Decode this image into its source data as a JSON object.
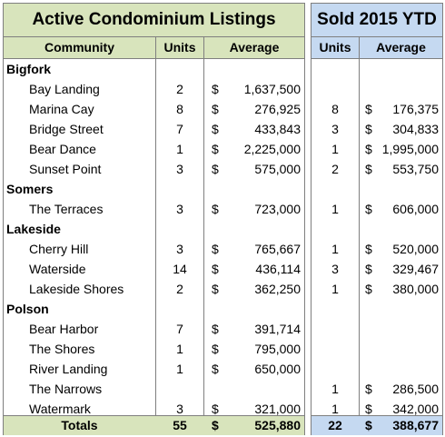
{
  "active": {
    "title": "Active Condominium Listings",
    "headers": {
      "community": "Community",
      "units": "Units",
      "average": "Average"
    },
    "totals": {
      "label": "Totals",
      "units": "55",
      "currency": "$",
      "average": "525,880"
    }
  },
  "sold": {
    "title": "Sold 2015 YTD",
    "headers": {
      "units": "Units",
      "average": "Average"
    },
    "totals": {
      "units": "22",
      "currency": "$",
      "average": "388,677"
    }
  },
  "rows": [
    {
      "type": "group",
      "name": "Bigfork"
    },
    {
      "type": "item",
      "name": "Bay Landing",
      "units": "2",
      "currency": "$",
      "avg": "1,637,500",
      "sold_units": "",
      "sold_currency": "",
      "sold_avg": ""
    },
    {
      "type": "item",
      "name": "Marina Cay",
      "units": "8",
      "currency": "$",
      "avg": "276,925",
      "sold_units": "8",
      "sold_currency": "$",
      "sold_avg": "176,375"
    },
    {
      "type": "item",
      "name": "Bridge Street",
      "units": "7",
      "currency": "$",
      "avg": "433,843",
      "sold_units": "3",
      "sold_currency": "$",
      "sold_avg": "304,833"
    },
    {
      "type": "item",
      "name": "Bear Dance",
      "units": "1",
      "currency": "$",
      "avg": "2,225,000",
      "sold_units": "1",
      "sold_currency": "$",
      "sold_avg": "1,995,000"
    },
    {
      "type": "item",
      "name": "Sunset Point",
      "units": "3",
      "currency": "$",
      "avg": "575,000",
      "sold_units": "2",
      "sold_currency": "$",
      "sold_avg": "553,750"
    },
    {
      "type": "group",
      "name": "Somers"
    },
    {
      "type": "item",
      "name": "The Terraces",
      "units": "3",
      "currency": "$",
      "avg": "723,000",
      "sold_units": "1",
      "sold_currency": "$",
      "sold_avg": "606,000"
    },
    {
      "type": "group",
      "name": "Lakeside"
    },
    {
      "type": "item",
      "name": "Cherry Hill",
      "units": "3",
      "currency": "$",
      "avg": "765,667",
      "sold_units": "1",
      "sold_currency": "$",
      "sold_avg": "520,000"
    },
    {
      "type": "item",
      "name": "Waterside",
      "units": "14",
      "currency": "$",
      "avg": "436,114",
      "sold_units": "3",
      "sold_currency": "$",
      "sold_avg": "329,467"
    },
    {
      "type": "item",
      "name": "Lakeside Shores",
      "units": "2",
      "currency": "$",
      "avg": "362,250",
      "sold_units": "1",
      "sold_currency": "$",
      "sold_avg": "380,000"
    },
    {
      "type": "group",
      "name": "Polson"
    },
    {
      "type": "item",
      "name": "Bear Harbor",
      "units": "7",
      "currency": "$",
      "avg": "391,714",
      "sold_units": "",
      "sold_currency": "",
      "sold_avg": ""
    },
    {
      "type": "item",
      "name": "The Shores",
      "units": "1",
      "currency": "$",
      "avg": "795,000",
      "sold_units": "",
      "sold_currency": "",
      "sold_avg": ""
    },
    {
      "type": "item",
      "name": "River Landing",
      "units": "1",
      "currency": "$",
      "avg": "650,000",
      "sold_units": "",
      "sold_currency": "",
      "sold_avg": ""
    },
    {
      "type": "item",
      "name": "The Narrows",
      "units": "",
      "currency": "",
      "avg": "",
      "sold_units": "1",
      "sold_currency": "$",
      "sold_avg": "286,500"
    },
    {
      "type": "item",
      "name": "Watermark",
      "units": "3",
      "currency": "$",
      "avg": "321,000",
      "sold_units": "1",
      "sold_currency": "$",
      "sold_avg": "342,000"
    }
  ]
}
